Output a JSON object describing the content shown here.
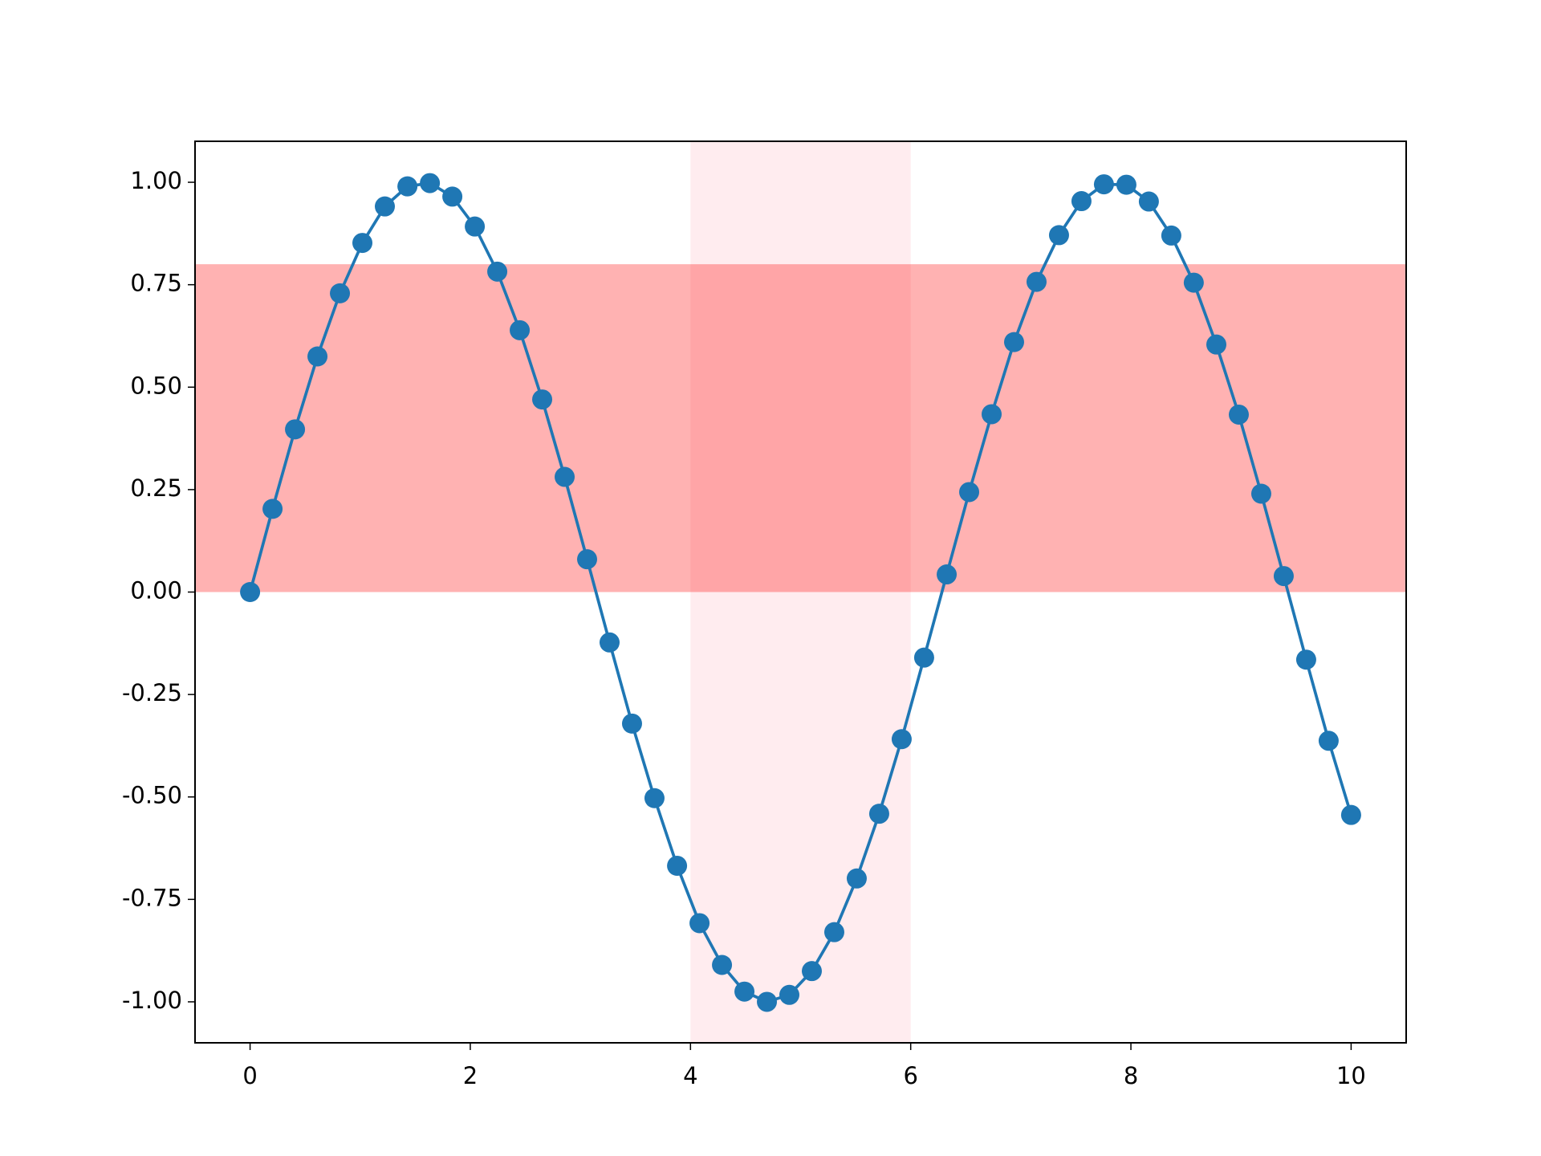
{
  "chart_data": {
    "type": "line",
    "markers": true,
    "x": [
      0,
      0.204,
      0.408,
      0.612,
      0.816,
      1.02,
      1.224,
      1.429,
      1.633,
      1.837,
      2.041,
      2.245,
      2.449,
      2.653,
      2.857,
      3.061,
      3.265,
      3.469,
      3.673,
      3.878,
      4.082,
      4.286,
      4.49,
      4.694,
      4.898,
      5.102,
      5.306,
      5.51,
      5.714,
      5.918,
      6.122,
      6.327,
      6.531,
      6.735,
      6.939,
      7.143,
      7.347,
      7.551,
      7.755,
      7.959,
      8.163,
      8.367,
      8.571,
      8.776,
      8.98,
      9.184,
      9.388,
      9.592,
      9.796,
      10
    ],
    "series": [
      {
        "color": "#1f77b4",
        "values": [
          0,
          0.203,
          0.397,
          0.575,
          0.729,
          0.852,
          0.941,
          0.99,
          0.998,
          0.965,
          0.892,
          0.782,
          0.639,
          0.47,
          0.281,
          0.08,
          -0.123,
          -0.321,
          -0.503,
          -0.668,
          -0.808,
          -0.91,
          -0.975,
          -1.0,
          -0.983,
          -0.925,
          -0.83,
          -0.699,
          -0.541,
          -0.359,
          -0.16,
          0.043,
          0.244,
          0.434,
          0.61,
          0.757,
          0.871,
          0.954,
          0.995,
          0.994,
          0.953,
          0.87,
          0.755,
          0.604,
          0.433,
          0.24,
          0.039,
          -0.165,
          -0.363,
          -0.544
        ]
      }
    ],
    "vspan": {
      "range": [
        4,
        6
      ],
      "color": "#ffc0cb",
      "opacity": 0.3
    },
    "hspan": {
      "range": [
        0,
        0.8
      ],
      "color": "#ff0000",
      "opacity": 0.3
    },
    "xlim": [
      -0.5,
      10.5
    ],
    "ylim": [
      -1.1,
      1.1
    ],
    "xticks": [
      0,
      2,
      4,
      6,
      8,
      10
    ],
    "yticks": [
      {
        "value": -1,
        "label": "-1.00"
      },
      {
        "value": -0.75,
        "label": "-0.75"
      },
      {
        "value": -0.5,
        "label": "-0.50"
      },
      {
        "value": -0.25,
        "label": "-0.25"
      },
      {
        "value": 0,
        "label": "0.00"
      },
      {
        "value": 0.25,
        "label": "0.25"
      },
      {
        "value": 0.5,
        "label": "0.50"
      },
      {
        "value": 0.75,
        "label": "0.75"
      },
      {
        "value": 1,
        "label": "1.00"
      }
    ],
    "grid": false
  }
}
